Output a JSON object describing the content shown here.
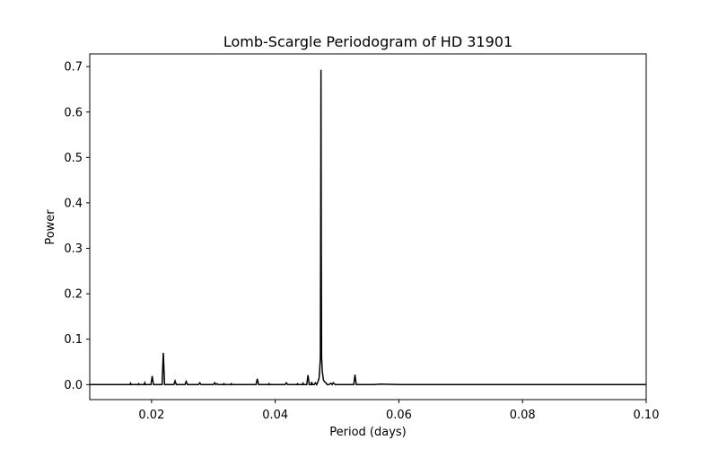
{
  "chart_data": {
    "type": "line",
    "title": "Lomb-Scargle Periodogram of HD 31901",
    "xlabel": "Period (days)",
    "ylabel": "Power",
    "xlim": [
      0.01,
      0.1
    ],
    "ylim": [
      -0.033,
      0.728
    ],
    "xticks": [
      0.02,
      0.04,
      0.06,
      0.08,
      0.1
    ],
    "xtick_labels": [
      "0.02",
      "0.04",
      "0.06",
      "0.08",
      "0.10"
    ],
    "yticks": [
      0.0,
      0.1,
      0.2,
      0.3,
      0.4,
      0.5,
      0.6,
      0.7
    ],
    "ytick_labels": [
      "0.0",
      "0.1",
      "0.2",
      "0.3",
      "0.4",
      "0.5",
      "0.6",
      "0.7"
    ],
    "grid": false,
    "line_color": "#000000",
    "series": [
      {
        "x": [
          0.01,
          0.0165,
          0.0166,
          0.0167,
          0.0178,
          0.0179,
          0.018,
          0.0188,
          0.0189,
          0.019,
          0.0199,
          0.0201,
          0.0203,
          0.0217,
          0.0219,
          0.0221,
          0.0236,
          0.0238,
          0.024,
          0.0254,
          0.0256,
          0.0258,
          0.0276,
          0.0278,
          0.028,
          0.03,
          0.0302,
          0.0304,
          0.0306,
          0.0308,
          0.0316,
          0.0317,
          0.0318,
          0.0328,
          0.0329,
          0.033,
          0.0369,
          0.0371,
          0.0373,
          0.0389,
          0.039,
          0.0391,
          0.0416,
          0.0418,
          0.042,
          0.0435,
          0.0436,
          0.0437,
          0.0444,
          0.0445,
          0.0446,
          0.0451,
          0.0453,
          0.0455,
          0.0458,
          0.0459,
          0.046,
          0.0463,
          0.0465,
          0.0467,
          0.0469,
          0.047,
          0.0471,
          0.0472,
          0.0473,
          0.04735,
          0.0474,
          0.04745,
          0.0475,
          0.0476,
          0.0477,
          0.0478,
          0.048,
          0.0482,
          0.0484,
          0.0487,
          0.049,
          0.0492,
          0.0494,
          0.0497,
          0.05,
          0.0527,
          0.0529,
          0.0531,
          0.056,
          0.057,
          0.06,
          0.1
        ],
        "y": [
          0.0,
          0.0,
          0.003,
          0.0,
          0.0,
          0.002,
          0.0,
          0.0,
          0.004,
          0.0,
          0.0,
          0.019,
          0.0,
          0.0,
          0.07,
          0.0,
          0.0,
          0.008,
          0.0,
          0.0,
          0.007,
          0.0,
          0.0,
          0.004,
          0.0,
          0.0,
          0.004,
          0.0,
          0.002,
          0.0,
          0.0,
          0.002,
          0.0,
          0.0,
          0.002,
          0.0,
          0.0,
          0.013,
          0.0,
          0.0,
          0.002,
          0.0,
          0.0,
          0.004,
          0.0,
          0.0,
          0.002,
          0.0,
          0.0,
          0.003,
          0.0,
          0.0,
          0.021,
          0.0,
          0.0,
          0.006,
          0.0,
          0.0,
          0.004,
          0.0,
          0.006,
          0.01,
          0.015,
          0.035,
          0.06,
          0.35,
          0.693,
          0.3,
          0.06,
          0.03,
          0.02,
          0.01,
          0.006,
          0.004,
          0.0,
          0.0,
          0.003,
          0.0,
          0.004,
          0.0,
          0.0,
          0.0,
          0.022,
          0.0,
          0.0,
          0.001,
          0.0,
          0.0
        ]
      }
    ]
  }
}
